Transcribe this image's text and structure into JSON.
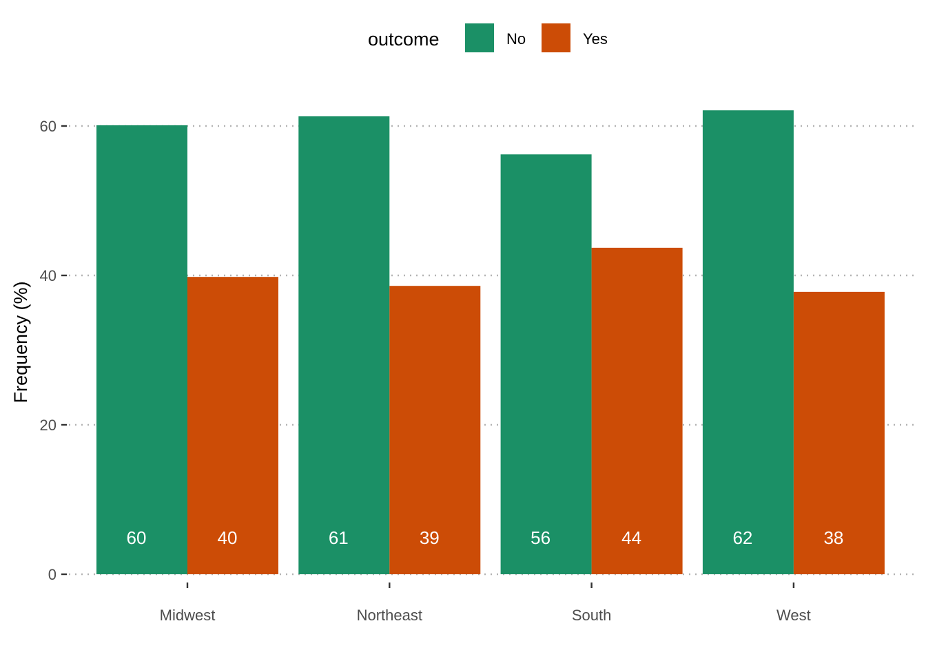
{
  "chart_data": {
    "type": "bar",
    "categories": [
      "Midwest",
      "Northeast",
      "South",
      "West"
    ],
    "series": [
      {
        "name": "No",
        "values": [
          60.1,
          61.3,
          56.2,
          62.1
        ],
        "labels": [
          "60",
          "61",
          "56",
          "62"
        ],
        "color": "#1b9066"
      },
      {
        "name": "Yes",
        "values": [
          39.8,
          38.6,
          43.7,
          37.8
        ],
        "labels": [
          "40",
          "39",
          "44",
          "38"
        ],
        "color": "#cc4c06"
      }
    ],
    "title": "",
    "xlabel": "",
    "ylabel": "Frequency (%)",
    "ylim": [
      0,
      64
    ],
    "yticks": [
      0,
      20,
      40,
      60
    ],
    "grid": "horizontal-dotted",
    "legend": {
      "title": "outcome",
      "position": "top"
    }
  }
}
